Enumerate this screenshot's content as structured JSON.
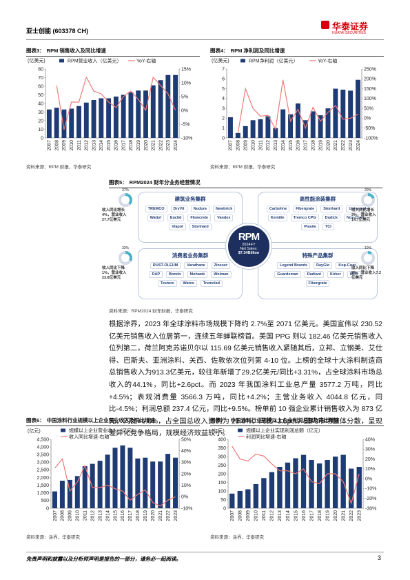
{
  "header": {
    "company": "亚士创能 (603378 CH)",
    "logo_cn": "华泰证券",
    "logo_en": "HUATAI SECURITIES"
  },
  "figures": [
    {
      "label": "图表3：",
      "title": "RPM 销售收入及同比增速",
      "source": "资料来源：RPM 财报，华泰研究"
    },
    {
      "label": "图表4：",
      "title": "RPM 净利润及同比增速",
      "source": "资料来源：RPM 财报，华泰研究"
    },
    {
      "label": "图表5：",
      "title": "RPM2024 财年分业务经营情况",
      "source": "资料来源：RPM2024 财年财报，华泰研究"
    },
    {
      "label": "图表6：",
      "title": "中国涂料行业规模以上企业营业收入及同比增速",
      "source": "资料来源：涂界，华泰研究"
    },
    {
      "label": "图表7：",
      "title": "中国涂料行业规模以上企业利润总额及同比增速",
      "source": "资料来源：涂界，华泰研究"
    }
  ],
  "chart_data": [
    {
      "type": "combo",
      "unit": "(亿美元)",
      "legend": "row",
      "categories": [
        "2007",
        "2008",
        "2009",
        "2010",
        "2011",
        "2012",
        "2013",
        "2014",
        "2015",
        "2016",
        "2017",
        "2018",
        "2019",
        "2020",
        "2021",
        "2022",
        "2023",
        "2024"
      ],
      "series": [
        {
          "name": "RPM营业收入（亿美元）",
          "type": "bar",
          "color": "#1f3b73",
          "values": [
            33,
            35,
            33,
            34,
            37,
            41,
            44,
            46,
            46,
            48,
            50,
            53,
            55,
            55,
            61,
            67,
            73,
            73
          ]
        },
        {
          "name": "YoY-右轴",
          "type": "line",
          "color": "#f07878",
          "axis": "y2",
          "values": [
            null,
            9,
            -7,
            3,
            3,
            12,
            7,
            6,
            3,
            1,
            5,
            7,
            4,
            0,
            12,
            9,
            6,
            0
          ]
        }
      ],
      "ylim": [
        0,
        80
      ],
      "yticks": [
        0,
        10,
        20,
        30,
        40,
        50,
        60,
        70,
        80
      ],
      "y2lim": [
        -10,
        15
      ],
      "y2ticks": [
        {
          "value": -10,
          "label": "-10%"
        },
        {
          "value": -5,
          "label": "-5%"
        },
        {
          "value": 0,
          "label": "0%"
        },
        {
          "value": 5,
          "label": "5%"
        },
        {
          "value": 10,
          "label": "10%"
        },
        {
          "value": 15,
          "label": "15%"
        }
      ]
    },
    {
      "type": "combo",
      "unit": "(亿美元)",
      "legend": "row",
      "categories": [
        "2007",
        "2008",
        "2009",
        "2010",
        "2011",
        "2012",
        "2013",
        "2014",
        "2015",
        "2016",
        "2017",
        "2018",
        "2019",
        "2020",
        "2021",
        "2022",
        "2023",
        "2024"
      ],
      "series": [
        {
          "name": "RPM净利润（亿美元）",
          "type": "bar",
          "color": "#1f3b73",
          "values": [
            2.1,
            0.5,
            1.2,
            1.8,
            1.9,
            2.2,
            1.0,
            2.9,
            2.4,
            3.5,
            1.8,
            2.7,
            2.3,
            3.0,
            5.0,
            4.9,
            4.8,
            5.9
          ]
        },
        {
          "name": "YoY-右轴",
          "type": "line",
          "color": "#f07878",
          "axis": "y2",
          "values": [
            null,
            -75,
            150,
            50,
            10,
            15,
            -55,
            195,
            -15,
            45,
            -50,
            55,
            -15,
            30,
            65,
            -5,
            0,
            20
          ]
        }
      ],
      "ylim": [
        0,
        7
      ],
      "yticks": [
        0,
        1,
        2,
        3,
        4,
        5,
        6,
        7
      ],
      "y2lim": [
        -100,
        250
      ],
      "y2ticks": [
        {
          "value": -100,
          "label": "-100%"
        },
        {
          "value": -50,
          "label": "-50%"
        },
        {
          "value": 0,
          "label": "0%"
        },
        {
          "value": 50,
          "label": "50%"
        },
        {
          "value": 100,
          "label": "100%"
        },
        {
          "value": 150,
          "label": "150%"
        },
        {
          "value": 200,
          "label": "200%"
        },
        {
          "value": 250,
          "label": "250%"
        }
      ]
    },
    {
      "type": "combo",
      "unit": "(亿元)",
      "legend": "stack",
      "categories": [
        "2007",
        "2008",
        "2009",
        "2010",
        "2011",
        "2012",
        "2013",
        "2014",
        "2015",
        "2016",
        "2017",
        "2018",
        "2019",
        "2020",
        "2021",
        "2022",
        "2023"
      ],
      "series": [
        {
          "name": "规模以上企业营业收入（亿元）",
          "type": "bar",
          "color": "#1f3b73",
          "values": [
            1100,
            1800,
            1850,
            2100,
            2750,
            2900,
            3100,
            3500,
            3950,
            4100,
            3950,
            3250,
            3300,
            3050,
            3050,
            3550,
            3300
          ]
        },
        {
          "name": "收入同比增速-右轴",
          "type": "line",
          "color": "#f07878",
          "axis": "y2",
          "values": [
            25,
            33,
            5,
            13,
            27,
            8,
            8,
            10,
            7,
            5,
            -3,
            2,
            6,
            -5,
            -8,
            -3,
            0
          ]
        }
      ],
      "ylim": [
        0,
        4500
      ],
      "yticks": [
        0,
        500,
        {
          "value": 1000,
          "label": "1,000"
        },
        {
          "value": 1500,
          "label": "1,500"
        },
        {
          "value": 2000,
          "label": "2,000"
        },
        {
          "value": 2500,
          "label": "2,500"
        },
        {
          "value": 3000,
          "label": "3,000"
        },
        {
          "value": 3500,
          "label": "3,500"
        },
        {
          "value": 4000,
          "label": "4,000"
        },
        {
          "value": 4500,
          "label": "4,500"
        }
      ],
      "y2lim": [
        -10,
        50
      ],
      "y2ticks": [
        {
          "value": -10,
          "label": "-10%"
        },
        {
          "value": 0,
          "label": "0%"
        },
        {
          "value": 10,
          "label": "10%"
        },
        {
          "value": 20,
          "label": "20%"
        },
        {
          "value": 30,
          "label": "30%"
        },
        {
          "value": 40,
          "label": "40%"
        },
        {
          "value": 50,
          "label": "50%"
        }
      ]
    },
    {
      "type": "combo",
      "unit": "(亿元)",
      "legend": "stack",
      "categories": [
        "2007",
        "2008",
        "2009",
        "2010",
        "2011",
        "2012",
        "2013",
        "2014",
        "2015",
        "2016",
        "2017",
        "2018",
        "2019",
        "2020",
        "2021",
        "2022",
        "2023"
      ],
      "series": [
        {
          "name": "规模以上企业实现利润总额（亿元）",
          "type": "bar",
          "color": "#1f3b73",
          "values": [
            85,
            100,
            110,
            140,
            175,
            210,
            240,
            265,
            290,
            310,
            280,
            260,
            280,
            300,
            310,
            230,
            240
          ]
        },
        {
          "name": "利润同比增速-右轴",
          "type": "line",
          "color": "#f07878",
          "axis": "y2",
          "values": [
            33,
            20,
            18,
            25,
            23,
            15,
            8,
            8,
            5,
            10,
            -3,
            -5,
            5,
            5,
            -3,
            -25,
            5
          ]
        }
      ],
      "ylim": [
        0,
        400
      ],
      "yticks": [
        0,
        50,
        100,
        150,
        200,
        250,
        300,
        350,
        400
      ],
      "y2lim": [
        -30,
        40
      ],
      "y2ticks": [
        {
          "value": -30,
          "label": "-30%"
        },
        {
          "value": -20,
          "label": "-20%"
        },
        {
          "value": -10,
          "label": "-10%"
        },
        {
          "value": 0,
          "label": "0%"
        },
        {
          "value": 10,
          "label": "10%"
        },
        {
          "value": 20,
          "label": "20%"
        },
        {
          "value": 30,
          "label": "30%"
        },
        {
          "value": 40,
          "label": "40%"
        }
      ]
    }
  ],
  "diagram": {
    "center": {
      "logo": "RPM",
      "year": "2024FY",
      "label": "Net Sales:",
      "value": "$7.34Billion"
    },
    "segments": [
      {
        "title": "建筑业务集群",
        "share": 37,
        "share_label": "37%",
        "note": "收入同比增长4%，营业收入27.7亿美元",
        "brands": [
          "TREMCO",
          "DryVit",
          "Nudura",
          "Newbrick",
          "Wattyl",
          "Euclid",
          "Flowcrete",
          "Vandex",
          "Viapol",
          "Stonhard"
        ]
      },
      {
        "title": "高性能涂装集群",
        "share": 20,
        "share_label": "20%",
        "note": "收入同比增长3%，营业收入14.7亿美元",
        "brands": [
          "Carboline",
          "Fibergrate",
          "Stonhard",
          "Universal",
          "Kemtile",
          "Tremco CPG",
          "Dudick",
          "Nox-Crete",
          "Plasite",
          "TCI"
        ]
      },
      {
        "title": "消费者业务集群",
        "share": 33,
        "share_label": "33%",
        "note": "收入同比下降1%，营业收入23.8亿美元",
        "brands": [
          "RUST-OLEUM",
          "Varathane",
          "Zinsser",
          "DAP",
          "Bondo",
          "Mohawk",
          "Wolman",
          "Testors",
          "Watco",
          "Tremclad"
        ]
      },
      {
        "title": "特殊产品集群",
        "share": 10,
        "share_label": "10%",
        "note": "收入同比下降8%，营业收入7.2亿美元",
        "brands": [
          "Legend Brands",
          "DayGlo",
          "Kop-Coat",
          "Guardsman",
          "Radiant",
          "Kirker",
          "MRT",
          "Fibergrate"
        ]
      }
    ]
  },
  "body": "根据涂界，2023 年全球涂料市场规模下降约 2.7%至 2071 亿美元。美国宣伟以 230.52 亿美元销售收入位居第一，连续五年蝉联榜首。美国 PPG 则以 182.46 亿美元销售收入位列第二，荷兰阿克苏诺贝尔以 115.69 亿美元销售收入紧随其后，立邦、立钢美、艾仕得、巴斯夫、亚洲涂料、关西、佐敦依次位列第 4-10 位。上榜的全球十大涂料制造商总销售收入为913.3亿美元，较往年新增了29.2亿美元/同比+3.31%，占全球涂料市场总收入的44.1%，同比+2.6pct。而 2023 年我国涂料工业总产量 3577.2 万吨，同比+4.5%；表观消费量 3566.3 万吨，同比+4.2%；主营业务收入 4044.8 亿元，同比-4.5%；利润总额 237.4 亿元，同比+9.5%。榜单前 10 强企业累计销售收入为 873 亿元，同比+6.6%，占全国总收入比例为 21.6%，同比+3.5pct，国内市场整体分散，呈现差异化竞争格局，规模经济效益较小。",
  "footer": {
    "disclaimer": "免责声明和披露以及分析师声明是报告的一部分，请务必一起阅读。",
    "page": "3"
  }
}
